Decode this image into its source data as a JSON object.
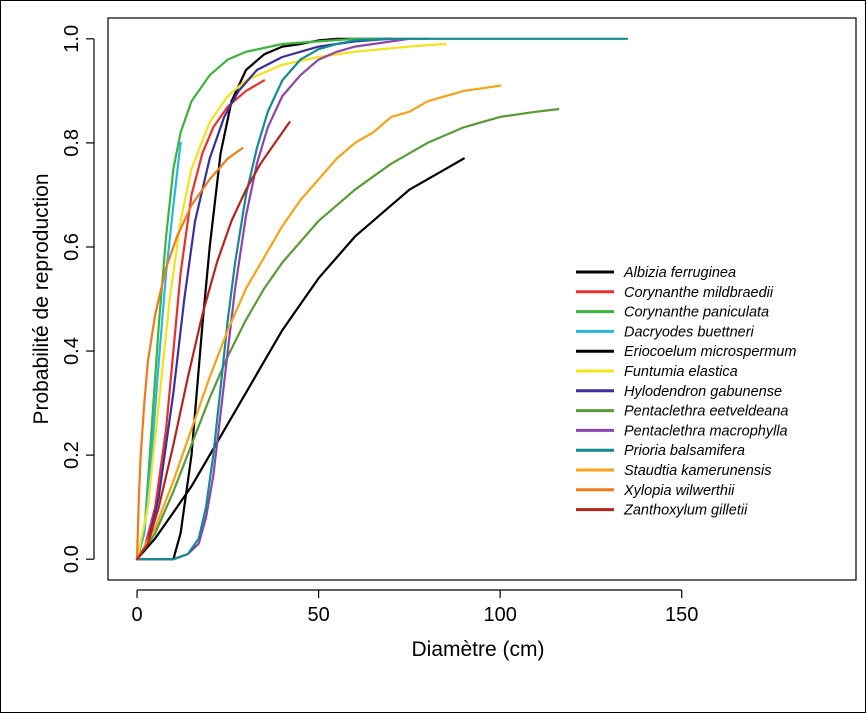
{
  "chart_data": {
    "type": "line",
    "title": "",
    "xlabel": "Diamètre (cm)",
    "ylabel": "Probabilité de reproduction",
    "xlim": [
      -8,
      198
    ],
    "ylim": [
      -0.04,
      1.04
    ],
    "x_ticks": [
      0,
      50,
      100,
      150
    ],
    "y_ticks": [
      0.0,
      0.2,
      0.4,
      0.6,
      0.8,
      1.0
    ],
    "x_tick_labels": [
      "0",
      "50",
      "100",
      "150"
    ],
    "y_tick_labels": [
      "0.0",
      "0.2",
      "0.4",
      "0.6",
      "0.8",
      "1.0"
    ],
    "grid": false,
    "legend_position": "right",
    "series": [
      {
        "name": "Albizia ferruginea",
        "color": "#000000",
        "x_max": 70,
        "points": [
          [
            0,
            0
          ],
          [
            10,
            0.0
          ],
          [
            12,
            0.05
          ],
          [
            15,
            0.2
          ],
          [
            18,
            0.45
          ],
          [
            20,
            0.6
          ],
          [
            23,
            0.78
          ],
          [
            26,
            0.88
          ],
          [
            30,
            0.94
          ],
          [
            35,
            0.97
          ],
          [
            40,
            0.985
          ],
          [
            45,
            0.99
          ],
          [
            50,
            0.997
          ],
          [
            55,
            1.0
          ],
          [
            60,
            1.0
          ],
          [
            70,
            1.0
          ]
        ]
      },
      {
        "name": "Corynanthe mildbraedii",
        "color": "#e8312a",
        "x_max": 35,
        "points": [
          [
            0,
            0
          ],
          [
            2,
            0.02
          ],
          [
            5,
            0.1
          ],
          [
            8,
            0.25
          ],
          [
            10,
            0.4
          ],
          [
            12,
            0.55
          ],
          [
            15,
            0.7
          ],
          [
            18,
            0.78
          ],
          [
            21,
            0.83
          ],
          [
            25,
            0.87
          ],
          [
            30,
            0.9
          ],
          [
            35,
            0.92
          ]
        ]
      },
      {
        "name": "Corynanthe paniculata",
        "color": "#3cb43c",
        "x_max": 80,
        "points": [
          [
            0,
            0
          ],
          [
            2,
            0.05
          ],
          [
            4,
            0.25
          ],
          [
            6,
            0.45
          ],
          [
            8,
            0.62
          ],
          [
            10,
            0.75
          ],
          [
            12,
            0.82
          ],
          [
            15,
            0.88
          ],
          [
            20,
            0.93
          ],
          [
            25,
            0.96
          ],
          [
            30,
            0.975
          ],
          [
            40,
            0.99
          ],
          [
            50,
            0.995
          ],
          [
            60,
            1.0
          ],
          [
            70,
            1.0
          ],
          [
            80,
            1.0
          ]
        ]
      },
      {
        "name": "Dacryodes buettneri",
        "color": "#27b6df",
        "x_max": 12,
        "points": [
          [
            0,
            0
          ],
          [
            2,
            0.05
          ],
          [
            4,
            0.2
          ],
          [
            6,
            0.38
          ],
          [
            8,
            0.55
          ],
          [
            10,
            0.68
          ],
          [
            12,
            0.8
          ]
        ]
      },
      {
        "name": "Eriocoelum microspermum",
        "color": "#000000",
        "x_max": 90,
        "points": [
          [
            0,
            0
          ],
          [
            5,
            0.04
          ],
          [
            10,
            0.09
          ],
          [
            15,
            0.14
          ],
          [
            20,
            0.2
          ],
          [
            25,
            0.26
          ],
          [
            30,
            0.32
          ],
          [
            35,
            0.38
          ],
          [
            40,
            0.44
          ],
          [
            45,
            0.49
          ],
          [
            50,
            0.54
          ],
          [
            55,
            0.58
          ],
          [
            60,
            0.62
          ],
          [
            65,
            0.65
          ],
          [
            70,
            0.68
          ],
          [
            75,
            0.71
          ],
          [
            80,
            0.73
          ],
          [
            85,
            0.75
          ],
          [
            90,
            0.77
          ]
        ]
      },
      {
        "name": "Funtumia elastica",
        "color": "#f2e31b",
        "x_max": 85,
        "points": [
          [
            0,
            0
          ],
          [
            3,
            0.1
          ],
          [
            6,
            0.3
          ],
          [
            9,
            0.5
          ],
          [
            12,
            0.65
          ],
          [
            15,
            0.75
          ],
          [
            20,
            0.84
          ],
          [
            25,
            0.89
          ],
          [
            30,
            0.92
          ],
          [
            40,
            0.95
          ],
          [
            50,
            0.965
          ],
          [
            60,
            0.975
          ],
          [
            70,
            0.982
          ],
          [
            80,
            0.988
          ],
          [
            85,
            0.99
          ]
        ]
      },
      {
        "name": "Hylodendron gabunense",
        "color": "#3a2f9e",
        "x_max": 70,
        "points": [
          [
            0,
            0
          ],
          [
            3,
            0.03
          ],
          [
            6,
            0.12
          ],
          [
            10,
            0.32
          ],
          [
            13,
            0.5
          ],
          [
            16,
            0.65
          ],
          [
            20,
            0.77
          ],
          [
            24,
            0.85
          ],
          [
            28,
            0.9
          ],
          [
            33,
            0.94
          ],
          [
            40,
            0.965
          ],
          [
            50,
            0.985
          ],
          [
            60,
            0.995
          ],
          [
            70,
            1.0
          ]
        ]
      },
      {
        "name": "Pentaclethra eetveldeana",
        "color": "#5a9a36",
        "x_max": 116,
        "points": [
          [
            0,
            0
          ],
          [
            5,
            0.05
          ],
          [
            10,
            0.13
          ],
          [
            15,
            0.22
          ],
          [
            20,
            0.31
          ],
          [
            25,
            0.39
          ],
          [
            30,
            0.46
          ],
          [
            35,
            0.52
          ],
          [
            40,
            0.57
          ],
          [
            45,
            0.61
          ],
          [
            50,
            0.65
          ],
          [
            55,
            0.68
          ],
          [
            60,
            0.71
          ],
          [
            70,
            0.76
          ],
          [
            80,
            0.8
          ],
          [
            90,
            0.83
          ],
          [
            100,
            0.85
          ],
          [
            110,
            0.86
          ],
          [
            116,
            0.865
          ]
        ]
      },
      {
        "name": "Pentaclethra macrophylla",
        "color": "#8e44ad",
        "x_max": 75,
        "points": [
          [
            0,
            0
          ],
          [
            10,
            0.0
          ],
          [
            14,
            0.01
          ],
          [
            17,
            0.03
          ],
          [
            19,
            0.08
          ],
          [
            21,
            0.16
          ],
          [
            23,
            0.28
          ],
          [
            25,
            0.4
          ],
          [
            27,
            0.52
          ],
          [
            30,
            0.66
          ],
          [
            33,
            0.76
          ],
          [
            36,
            0.83
          ],
          [
            40,
            0.89
          ],
          [
            45,
            0.93
          ],
          [
            50,
            0.96
          ],
          [
            55,
            0.975
          ],
          [
            60,
            0.985
          ],
          [
            65,
            0.99
          ],
          [
            70,
            0.995
          ],
          [
            75,
            1.0
          ]
        ]
      },
      {
        "name": "Prioria balsamifera",
        "color": "#138a92",
        "x_max": 135,
        "points": [
          [
            0,
            0
          ],
          [
            10,
            0.0
          ],
          [
            14,
            0.01
          ],
          [
            17,
            0.04
          ],
          [
            19,
            0.1
          ],
          [
            21,
            0.2
          ],
          [
            23,
            0.33
          ],
          [
            25,
            0.46
          ],
          [
            27,
            0.57
          ],
          [
            30,
            0.7
          ],
          [
            33,
            0.79
          ],
          [
            36,
            0.86
          ],
          [
            40,
            0.92
          ],
          [
            45,
            0.96
          ],
          [
            50,
            0.98
          ],
          [
            55,
            0.99
          ],
          [
            60,
            0.997
          ],
          [
            70,
            1.0
          ],
          [
            90,
            1.0
          ],
          [
            110,
            1.0
          ],
          [
            135,
            1.0
          ]
        ]
      },
      {
        "name": "Staudtia kamerunensis",
        "color": "#f7a21b",
        "x_max": 100,
        "points": [
          [
            0,
            0
          ],
          [
            5,
            0.06
          ],
          [
            10,
            0.15
          ],
          [
            15,
            0.25
          ],
          [
            20,
            0.35
          ],
          [
            25,
            0.44
          ],
          [
            30,
            0.52
          ],
          [
            35,
            0.58
          ],
          [
            40,
            0.64
          ],
          [
            45,
            0.69
          ],
          [
            50,
            0.73
          ],
          [
            55,
            0.77
          ],
          [
            60,
            0.8
          ],
          [
            65,
            0.82
          ],
          [
            70,
            0.85
          ],
          [
            75,
            0.86
          ],
          [
            80,
            0.88
          ],
          [
            85,
            0.89
          ],
          [
            90,
            0.9
          ],
          [
            95,
            0.905
          ],
          [
            100,
            0.91
          ]
        ]
      },
      {
        "name": "Xylopia wilwerthii",
        "color": "#f07a1a",
        "x_max": 29,
        "points": [
          [
            0,
            0
          ],
          [
            0.5,
            0.12
          ],
          [
            1,
            0.2
          ],
          [
            2,
            0.3
          ],
          [
            3,
            0.38
          ],
          [
            5,
            0.47
          ],
          [
            8,
            0.56
          ],
          [
            11,
            0.62
          ],
          [
            15,
            0.68
          ],
          [
            20,
            0.73
          ],
          [
            25,
            0.77
          ],
          [
            29,
            0.79
          ]
        ]
      },
      {
        "name": "Zanthoxylum gilletii",
        "color": "#b3261e",
        "x_max": 42,
        "points": [
          [
            0,
            0
          ],
          [
            3,
            0.03
          ],
          [
            6,
            0.1
          ],
          [
            10,
            0.22
          ],
          [
            14,
            0.35
          ],
          [
            18,
            0.47
          ],
          [
            22,
            0.57
          ],
          [
            26,
            0.65
          ],
          [
            30,
            0.71
          ],
          [
            34,
            0.76
          ],
          [
            38,
            0.8
          ],
          [
            42,
            0.84
          ]
        ]
      }
    ]
  }
}
